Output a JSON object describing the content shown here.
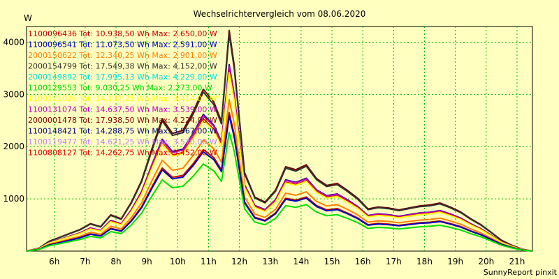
{
  "chart_data": {
    "type": "line",
    "title": "Wechselrichtervergleich vom 08.06.2020",
    "ylabel": "W",
    "credit": "SunnyReport pinxit",
    "ylim": [
      0,
      4300
    ],
    "xlim": [
      5.1,
      21.5
    ],
    "x_ticks": [
      {
        "value": 6,
        "label": "6h"
      },
      {
        "value": 7,
        "label": "7h"
      },
      {
        "value": 8,
        "label": "8h"
      },
      {
        "value": 9,
        "label": "9h"
      },
      {
        "value": 10,
        "label": "10h"
      },
      {
        "value": 11,
        "label": "11h"
      },
      {
        "value": 12,
        "label": "12h"
      },
      {
        "value": 13,
        "label": "13h"
      },
      {
        "value": 14,
        "label": "14h"
      },
      {
        "value": 15,
        "label": "15h"
      },
      {
        "value": 16,
        "label": "16h"
      },
      {
        "value": 17,
        "label": "17h"
      },
      {
        "value": 18,
        "label": "18h"
      },
      {
        "value": 19,
        "label": "19h"
      },
      {
        "value": 20,
        "label": "20h"
      },
      {
        "value": 21,
        "label": "21h"
      }
    ],
    "y_ticks": [
      {
        "value": 1000,
        "label": "1000"
      },
      {
        "value": 2000,
        "label": "2000"
      },
      {
        "value": 3000,
        "label": "3000"
      },
      {
        "value": 4000,
        "label": "4000"
      }
    ],
    "grid": true,
    "legend_position": "top-left",
    "x": [
      5.1,
      5.5,
      5.83,
      6.17,
      6.5,
      6.83,
      7.17,
      7.5,
      7.83,
      8.17,
      8.5,
      8.83,
      9.17,
      9.5,
      9.83,
      10.17,
      10.5,
      10.83,
      11.17,
      11.42,
      11.67,
      11.83,
      12.17,
      12.5,
      12.83,
      13.17,
      13.5,
      13.83,
      14.17,
      14.5,
      14.83,
      15.17,
      15.5,
      15.83,
      16.17,
      16.5,
      16.83,
      17.17,
      17.5,
      17.83,
      18.17,
      18.5,
      18.83,
      19.17,
      19.5,
      19.83,
      20.17,
      20.5,
      20.83,
      21.17,
      21.5
    ],
    "reference_profile": [
      0,
      30,
      100,
      140,
      180,
      220,
      280,
      250,
      370,
      330,
      500,
      720,
      1050,
      1350,
      1200,
      1230,
      1420,
      1650,
      1520,
      1320,
      2250,
      1900,
      800,
      550,
      500,
      620,
      860,
      830,
      880,
      740,
      670,
      690,
      620,
      540,
      430,
      450,
      440,
      420,
      440,
      460,
      470,
      490,
      450,
      400,
      330,
      270,
      190,
      110,
      60,
      20,
      0
    ],
    "series": [
      {
        "label": "1100096436 Tot: 10.938,50 Wh Max: 2.650,00 W",
        "color": "#c00000",
        "max": 2650
      },
      {
        "label": "1100096541 Tot: 11.073,50 Wh Max: 2.591,00 W",
        "color": "#0000c0",
        "max": 2591
      },
      {
        "label": "2000150622 Tot: 12.340,25 Wh Max: 2.901,00 W",
        "color": "#ff8000",
        "max": 2901
      },
      {
        "label": "2000154799 Tot: 17.549,38 Wh Max: 4.152,00 W",
        "color": "#303030",
        "max": 4152
      },
      {
        "label": "2000149892 Tot: 17.995,13 Wh Max: 4.229,00 W",
        "color": "#00e0e0",
        "max": 4229
      },
      {
        "label": "1100129553 Tot: 9.030,25 Wh Max: 2.273,00 W",
        "color": "#00e000",
        "max": 2273
      },
      {
        "label": "1100121026 Tot: 14.131,25 Wh Max: 3.414,00 W",
        "color": "#ffff00",
        "max": 3414
      },
      {
        "label": "1100131074 Tot: 14.637,50 Wh Max: 3.539,00 W",
        "color": "#c000c0",
        "max": 3539
      },
      {
        "label": "2000001478 Tot: 17.938,50 Wh Max: 4.224,00 W",
        "color": "#800000",
        "max": 4224
      },
      {
        "label": "1100148421 Tot: 14.288,75 Wh Max: 3.567,00 W",
        "color": "#000080",
        "max": 3567
      },
      {
        "label": "1100119477 Tot: 14.621,25 Wh Max: 3.570,00 W",
        "color": "#c080ff",
        "max": 3570
      },
      {
        "label": "1100808127 Tot: 14.262,75 Wh Max: 3.452,00 W",
        "color": "#e00000",
        "max": 3452
      }
    ]
  }
}
